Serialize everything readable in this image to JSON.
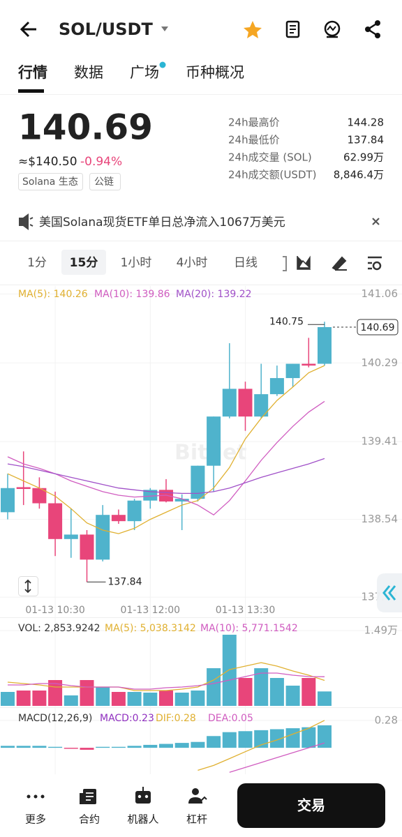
{
  "header": {
    "title": "SOL/USDT"
  },
  "tabs": [
    "行情",
    "数据",
    "广场",
    "币种概况"
  ],
  "price": {
    "last": "140.69",
    "usd": "≈$140.50",
    "change": "-0.94%",
    "tags": [
      "Solana 生态",
      "公链"
    ]
  },
  "stats": [
    {
      "label": "24h最高价",
      "value": "144.28"
    },
    {
      "label": "24h最低价",
      "value": "137.84"
    },
    {
      "label": "24h成交量 (SOL)",
      "value": "62.99万"
    },
    {
      "label": "24h成交额(USDT)",
      "value": "8,846.4万"
    }
  ],
  "notice": "美国Solana现货ETF单日总净流入1067万美元",
  "intervals": [
    "1分",
    "15分",
    "1小时",
    "4小时",
    "日线"
  ],
  "chart_data": [
    {
      "type": "candlestick",
      "watermark": "Bitget",
      "categories": [
        null,
        null,
        null,
        "01-13 10:30",
        null,
        null,
        null,
        null,
        null,
        "01-13 12:00",
        null,
        null,
        null,
        null,
        null,
        "01-13 13:30",
        null,
        null,
        null,
        null,
        null
      ],
      "open": [
        138.62,
        138.9,
        138.89,
        138.72,
        138.32,
        138.37,
        138.09,
        138.59,
        138.52,
        138.75,
        138.87,
        138.74,
        138.77,
        139.14,
        139.69,
        140.0,
        139.69,
        139.94,
        140.12,
        140.28,
        140.28
      ],
      "high": [
        139.05,
        139.3,
        139.01,
        138.85,
        138.66,
        138.42,
        138.7,
        138.65,
        138.77,
        138.89,
        138.99,
        138.82,
        139.14,
        139.69,
        140.51,
        140.08,
        140.28,
        140.26,
        140.28,
        140.57,
        140.75
      ],
      "low": [
        138.54,
        138.7,
        138.66,
        138.13,
        138.11,
        137.84,
        138.07,
        138.49,
        138.42,
        138.66,
        138.73,
        138.42,
        138.74,
        138.85,
        139.67,
        139.53,
        139.67,
        139.92,
        140.02,
        140.24,
        140.26
      ],
      "close": [
        138.89,
        138.88,
        138.72,
        138.32,
        138.37,
        138.09,
        138.59,
        138.52,
        138.75,
        138.87,
        138.74,
        138.77,
        139.14,
        139.69,
        140.0,
        139.69,
        139.94,
        140.12,
        140.28,
        140.26,
        140.69
      ],
      "up_color": "#4fb3cc",
      "down_color": "#e8457a",
      "series": [
        {
          "name": "MA(5): 140.26",
          "color": "#e0b030",
          "values": [
            139.05,
            138.97,
            138.89,
            138.8,
            138.66,
            138.5,
            138.42,
            138.38,
            138.44,
            138.54,
            138.62,
            138.7,
            138.75,
            138.89,
            139.12,
            139.44,
            139.67,
            139.87,
            140.02,
            140.18,
            140.26
          ]
        },
        {
          "name": "MA(10): 139.86",
          "color": "#d05cc0",
          "values": [
            139.24,
            139.16,
            139.11,
            139.05,
            138.97,
            138.91,
            138.85,
            138.81,
            138.79,
            138.8,
            138.81,
            138.77,
            138.7,
            138.59,
            138.75,
            138.97,
            139.2,
            139.4,
            139.58,
            139.74,
            139.86
          ]
        },
        {
          "name": "MA(20): 139.22",
          "color": "#a050c8",
          "values": [
            139.16,
            139.13,
            139.09,
            139.05,
            139.01,
            138.97,
            138.93,
            138.89,
            138.87,
            138.85,
            138.84,
            138.83,
            138.83,
            138.85,
            138.89,
            138.95,
            139.01,
            139.06,
            139.11,
            139.16,
            139.22
          ]
        }
      ],
      "ylim": [
        137.64,
        141.15
      ],
      "yticks": [
        137.67,
        138.54,
        139.41,
        140.29,
        141.06
      ],
      "grid": true,
      "high_label": 140.75,
      "low_label": 137.84,
      "last_price_label": 140.69
    },
    {
      "type": "volume",
      "series": [
        {
          "name": "VOL: 2,853.9242",
          "color": "#333333",
          "values": [
            2759,
            3035,
            3035,
            5105,
            2069,
            5105,
            3725,
            2759,
            2759,
            2621,
            3035,
            2621,
            3035,
            7450,
            14072,
            5518,
            7450,
            5518,
            4001,
            5518,
            2853.92
          ]
        },
        {
          "name": "MA(5): 5,038.3142",
          "color": "#e0b030",
          "values": [
            4691,
            4415,
            4139,
            3725,
            3725,
            3725,
            3725,
            3725,
            3035,
            3035,
            3035,
            3311,
            3725,
            5105,
            7174,
            7864,
            8554,
            7864,
            6898,
            6070,
            5038.31
          ]
        },
        {
          "name": "MA(10): 5,771.1542",
          "color": "#d05cc0",
          "values": [
            4139,
            4139,
            4415,
            4415,
            4001,
            3725,
            3725,
            3725,
            3311,
            3311,
            3587,
            3725,
            4001,
            4415,
            5105,
            5794,
            6484,
            6484,
            6070,
            5794,
            5771.15
          ]
        }
      ],
      "ylim": [
        0,
        14900
      ],
      "yticks": [
        {
          "value": 14900,
          "label": "1.49万"
        }
      ]
    },
    {
      "type": "macd",
      "title": "MACD(12,26,9)",
      "series": [
        {
          "name": "MACD:0.23",
          "color": "#9030c0",
          "values": [
            0.02,
            0.02,
            0.02,
            0.01,
            -0.01,
            -0.02,
            0.01,
            0.01,
            0.02,
            0.03,
            0.04,
            0.05,
            0.06,
            0.12,
            0.16,
            0.17,
            0.18,
            0.19,
            0.2,
            0.21,
            0.23
          ]
        },
        {
          "name": "DIF:0.28",
          "color": "#e0b030",
          "values": [
            null,
            null,
            null,
            null,
            null,
            null,
            null,
            null,
            null,
            null,
            null,
            null,
            -0.23,
            -0.18,
            -0.11,
            -0.04,
            0.03,
            0.08,
            0.14,
            0.2,
            0.28
          ]
        },
        {
          "name": "DEA:0.05",
          "color": "#d05cc0",
          "values": [
            null,
            null,
            null,
            null,
            null,
            null,
            null,
            null,
            null,
            null,
            null,
            null,
            null,
            null,
            -0.25,
            -0.2,
            -0.15,
            -0.1,
            -0.05,
            0,
            0.05
          ]
        }
      ],
      "ylim": [
        -0.27,
        0.4
      ],
      "yticks": [
        0.28
      ]
    }
  ],
  "nav": [
    "更多",
    "合约",
    "机器人",
    "杠杆"
  ],
  "action": "交易"
}
